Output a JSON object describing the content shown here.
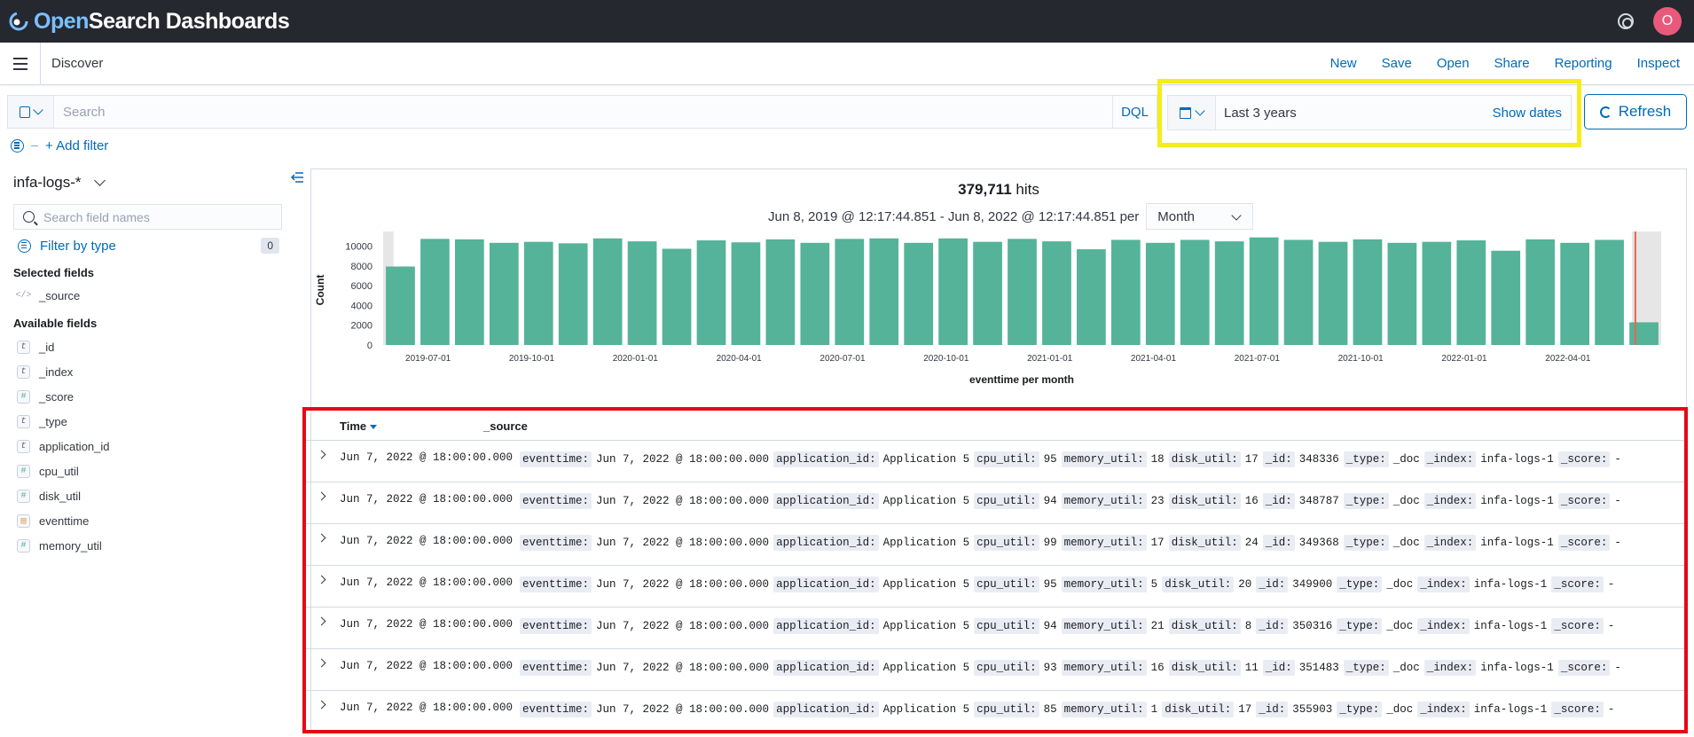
{
  "header": {
    "brand_open": "Open",
    "brand_rest": "Search Dashboards",
    "avatar_initial": "O"
  },
  "nav": {
    "breadcrumb": "Discover",
    "links": [
      "New",
      "Save",
      "Open",
      "Share",
      "Reporting",
      "Inspect"
    ]
  },
  "query": {
    "placeholder": "Search",
    "language": "DQL"
  },
  "timepicker": {
    "value": "Last 3 years",
    "show_dates": "Show dates",
    "refresh": "Refresh"
  },
  "filters": {
    "add_filter": "+ Add filter"
  },
  "sidebar": {
    "index_pattern": "infa-logs-*",
    "search_placeholder": "Search field names",
    "filter_by_type": "Filter by type",
    "filter_count": "0",
    "selected_title": "Selected fields",
    "selected_fields": [
      {
        "name": "_source",
        "type": "source"
      }
    ],
    "available_title": "Available fields",
    "available_fields": [
      {
        "name": "_id",
        "type": "t"
      },
      {
        "name": "_index",
        "type": "t"
      },
      {
        "name": "_score",
        "type": "#"
      },
      {
        "name": "_type",
        "type": "t"
      },
      {
        "name": "application_id",
        "type": "t"
      },
      {
        "name": "cpu_util",
        "type": "#"
      },
      {
        "name": "disk_util",
        "type": "#"
      },
      {
        "name": "eventtime",
        "type": "date"
      },
      {
        "name": "memory_util",
        "type": "#"
      }
    ]
  },
  "histogram": {
    "hits_count": "379,711",
    "hits_label": "hits",
    "range": "Jun 8, 2019 @ 12:17:44.851 - Jun 8, 2022 @ 12:17:44.851 per",
    "interval": "Month",
    "bar_color": "#54b399"
  },
  "chart_data": {
    "type": "bar",
    "title": "",
    "xlabel": "eventtime per month",
    "ylabel": "Count",
    "ylim": [
      0,
      10000
    ],
    "yticks": [
      0,
      2000,
      4000,
      6000,
      8000,
      10000
    ],
    "xtick_labels": [
      "2019-07-01",
      "2019-10-01",
      "2020-01-01",
      "2020-04-01",
      "2020-07-01",
      "2020-10-01",
      "2021-01-01",
      "2021-04-01",
      "2021-07-01",
      "2021-10-01",
      "2022-01-01",
      "2022-04-01"
    ],
    "categories": [
      "2019-06",
      "2019-07",
      "2019-08",
      "2019-09",
      "2019-10",
      "2019-11",
      "2019-12",
      "2020-01",
      "2020-02",
      "2020-03",
      "2020-04",
      "2020-05",
      "2020-06",
      "2020-07",
      "2020-08",
      "2020-09",
      "2020-10",
      "2020-11",
      "2020-12",
      "2021-01",
      "2021-02",
      "2021-03",
      "2021-04",
      "2021-05",
      "2021-06",
      "2021-07",
      "2021-08",
      "2021-09",
      "2021-10",
      "2021-11",
      "2021-12",
      "2022-01",
      "2022-02",
      "2022-03",
      "2022-04",
      "2022-05",
      "2022-06"
    ],
    "values": [
      7950,
      10750,
      10700,
      10350,
      10450,
      10300,
      10800,
      10500,
      9750,
      10600,
      10400,
      10700,
      10350,
      10750,
      10800,
      10350,
      10800,
      10450,
      10750,
      10500,
      9700,
      10650,
      10350,
      10650,
      10500,
      10900,
      10650,
      10450,
      10700,
      10350,
      10450,
      10600,
      9550,
      10700,
      10350,
      10650,
      2300
    ]
  },
  "table": {
    "col_time": "Time",
    "col_source": "_source",
    "rows": [
      {
        "time": "Jun 7, 2022 @ 18:00:00.000",
        "fields": [
          [
            "eventtime:",
            "Jun 7, 2022 @ 18:00:00.000"
          ],
          [
            "application_id:",
            "Application 5"
          ],
          [
            "cpu_util:",
            "95"
          ],
          [
            "memory_util:",
            "18"
          ],
          [
            "disk_util:",
            "17"
          ],
          [
            "_id:",
            "348336"
          ],
          [
            "_type:",
            "_doc"
          ],
          [
            "_index:",
            "infa-logs-1"
          ],
          [
            "_score:",
            "-"
          ]
        ]
      },
      {
        "time": "Jun 7, 2022 @ 18:00:00.000",
        "fields": [
          [
            "eventtime:",
            "Jun 7, 2022 @ 18:00:00.000"
          ],
          [
            "application_id:",
            "Application 5"
          ],
          [
            "cpu_util:",
            "94"
          ],
          [
            "memory_util:",
            "23"
          ],
          [
            "disk_util:",
            "16"
          ],
          [
            "_id:",
            "348787"
          ],
          [
            "_type:",
            "_doc"
          ],
          [
            "_index:",
            "infa-logs-1"
          ],
          [
            "_score:",
            "-"
          ]
        ]
      },
      {
        "time": "Jun 7, 2022 @ 18:00:00.000",
        "fields": [
          [
            "eventtime:",
            "Jun 7, 2022 @ 18:00:00.000"
          ],
          [
            "application_id:",
            "Application 5"
          ],
          [
            "cpu_util:",
            "99"
          ],
          [
            "memory_util:",
            "17"
          ],
          [
            "disk_util:",
            "24"
          ],
          [
            "_id:",
            "349368"
          ],
          [
            "_type:",
            "_doc"
          ],
          [
            "_index:",
            "infa-logs-1"
          ],
          [
            "_score:",
            "-"
          ]
        ]
      },
      {
        "time": "Jun 7, 2022 @ 18:00:00.000",
        "fields": [
          [
            "eventtime:",
            "Jun 7, 2022 @ 18:00:00.000"
          ],
          [
            "application_id:",
            "Application 5"
          ],
          [
            "cpu_util:",
            "95"
          ],
          [
            "memory_util:",
            "5"
          ],
          [
            "disk_util:",
            "20"
          ],
          [
            "_id:",
            "349900"
          ],
          [
            "_type:",
            "_doc"
          ],
          [
            "_index:",
            "infa-logs-1"
          ],
          [
            "_score:",
            "-"
          ]
        ]
      },
      {
        "time": "Jun 7, 2022 @ 18:00:00.000",
        "fields": [
          [
            "eventtime:",
            "Jun 7, 2022 @ 18:00:00.000"
          ],
          [
            "application_id:",
            "Application 5"
          ],
          [
            "cpu_util:",
            "94"
          ],
          [
            "memory_util:",
            "21"
          ],
          [
            "disk_util:",
            "8"
          ],
          [
            "_id:",
            "350316"
          ],
          [
            "_type:",
            "_doc"
          ],
          [
            "_index:",
            "infa-logs-1"
          ],
          [
            "_score:",
            "-"
          ]
        ]
      },
      {
        "time": "Jun 7, 2022 @ 18:00:00.000",
        "fields": [
          [
            "eventtime:",
            "Jun 7, 2022 @ 18:00:00.000"
          ],
          [
            "application_id:",
            "Application 5"
          ],
          [
            "cpu_util:",
            "93"
          ],
          [
            "memory_util:",
            "16"
          ],
          [
            "disk_util:",
            "11"
          ],
          [
            "_id:",
            "351483"
          ],
          [
            "_type:",
            "_doc"
          ],
          [
            "_index:",
            "infa-logs-1"
          ],
          [
            "_score:",
            "-"
          ]
        ]
      },
      {
        "time": "Jun 7, 2022 @ 18:00:00.000",
        "fields": [
          [
            "eventtime:",
            "Jun 7, 2022 @ 18:00:00.000"
          ],
          [
            "application_id:",
            "Application 5"
          ],
          [
            "cpu_util:",
            "85"
          ],
          [
            "memory_util:",
            "1"
          ],
          [
            "disk_util:",
            "17"
          ],
          [
            "_id:",
            "355903"
          ],
          [
            "_type:",
            "_doc"
          ],
          [
            "_index:",
            "infa-logs-1"
          ],
          [
            "_score:",
            "-"
          ]
        ]
      }
    ]
  }
}
